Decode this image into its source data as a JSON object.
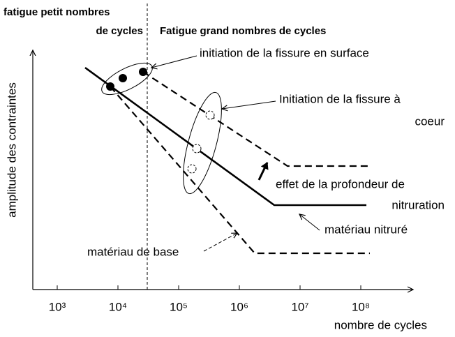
{
  "header": {
    "left_line1": "fatigue petit nombres",
    "left_line2": "de cycles",
    "right": "Fatigue grand nombres de cycles"
  },
  "axes": {
    "y_label": "amplitude des contraintes",
    "x_label": "nombre de cycles",
    "x_ticks": [
      "10³",
      "10⁴",
      "10⁵",
      "10⁶",
      "10⁷",
      "10⁸"
    ]
  },
  "annotations": {
    "surface": "initiation de la fissure en surface",
    "core_line1": "Initiation de la fissure à",
    "core_line2": "coeur",
    "depth_line1": "effet de la profondeur de",
    "depth_line2": "nitruration",
    "nitrided": "matériau nitruré",
    "base": "matériau de base"
  }
}
